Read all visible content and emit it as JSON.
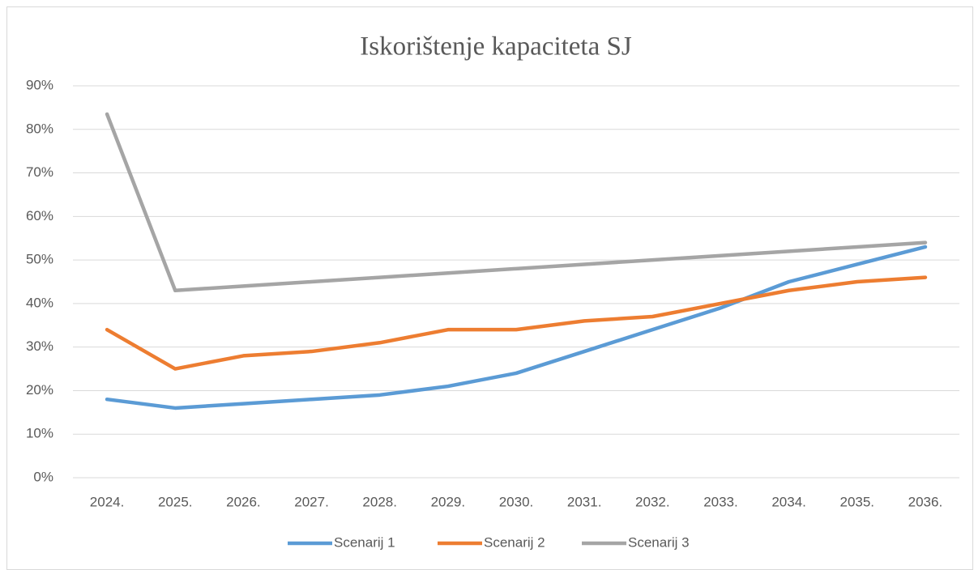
{
  "chart_data": {
    "type": "line",
    "title": "Iskorištenje kapaciteta SJ",
    "categories": [
      "2024.",
      "2025.",
      "2026.",
      "2027.",
      "2028.",
      "2029.",
      "2030.",
      "2031.",
      "2032.",
      "2033.",
      "2034.",
      "2035.",
      "2036."
    ],
    "series": [
      {
        "name": "Scenarij 1",
        "color": "#5b9bd5",
        "values": [
          18,
          16,
          17,
          18,
          19,
          21,
          24,
          29,
          34,
          39,
          45,
          49,
          53
        ]
      },
      {
        "name": "Scenarij 2",
        "color": "#ed7d31",
        "values": [
          34,
          25,
          28,
          29,
          31,
          34,
          34,
          36,
          37,
          40,
          43,
          45,
          46
        ]
      },
      {
        "name": "Scenarij 3",
        "color": "#a5a5a5",
        "values": [
          83.5,
          43,
          44,
          45,
          46,
          47,
          48,
          49,
          50,
          51,
          52,
          53,
          54
        ]
      }
    ],
    "ylim": [
      0,
      90
    ],
    "yticks": [
      {
        "value": 0,
        "label": "0%"
      },
      {
        "value": 10,
        "label": "10%"
      },
      {
        "value": 20,
        "label": "20%"
      },
      {
        "value": 30,
        "label": "30%"
      },
      {
        "value": 40,
        "label": "40%"
      },
      {
        "value": 50,
        "label": "50%"
      },
      {
        "value": 60,
        "label": "60%"
      },
      {
        "value": 70,
        "label": "70%"
      },
      {
        "value": 80,
        "label": "80%"
      },
      {
        "value": 90,
        "label": "90%"
      }
    ],
    "grid": true,
    "legend": "bottom"
  }
}
